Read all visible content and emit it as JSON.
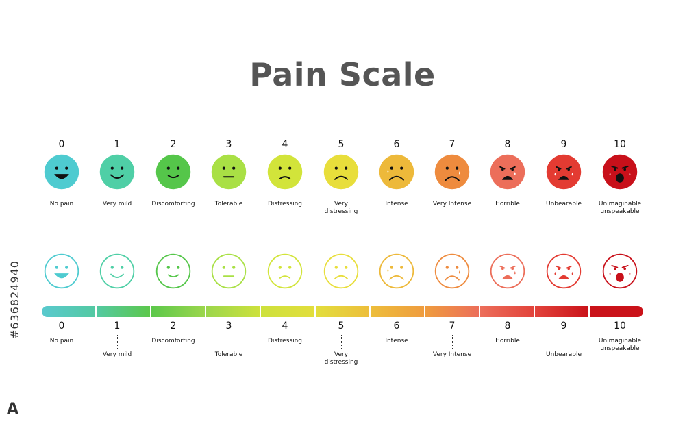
{
  "title": "Pain Scale",
  "side_text": {
    "logo": "A",
    "id": "#636824940"
  },
  "levels": [
    {
      "n": "0",
      "label": [
        "No pain"
      ],
      "color": "#4ECBD0",
      "face": "laugh"
    },
    {
      "n": "1",
      "label": [
        "Very mild"
      ],
      "color": "#4FCFA6",
      "face": "smile"
    },
    {
      "n": "2",
      "label": [
        "Discomforting"
      ],
      "color": "#55C64A",
      "face": "smile-small"
    },
    {
      "n": "3",
      "label": [
        "Tolerable"
      ],
      "color": "#A9E045",
      "face": "neutral"
    },
    {
      "n": "4",
      "label": [
        "Distressing"
      ],
      "color": "#D2E43A",
      "face": "frown"
    },
    {
      "n": "5",
      "label": [
        "Very",
        "distressing"
      ],
      "color": "#E8DE3B",
      "face": "frown-big"
    },
    {
      "n": "6",
      "label": [
        "Intense"
      ],
      "color": "#EDB93A",
      "face": "frown-tear"
    },
    {
      "n": "7",
      "label": [
        "Very Intense"
      ],
      "color": "#EE8B3E",
      "face": "frown-tears"
    },
    {
      "n": "8",
      "label": [
        "Horrible"
      ],
      "color": "#EC6E5A",
      "face": "open-tear"
    },
    {
      "n": "9",
      "label": [
        "Unbearable"
      ],
      "color": "#E33B32",
      "face": "open-tears"
    },
    {
      "n": "10",
      "label": [
        "Unimaginable",
        "unspeakable"
      ],
      "color": "#C8101A",
      "face": "scream"
    }
  ],
  "scale_bar_colors": [
    "#59C9CE",
    "#53C9A2",
    "#5CC84B",
    "#9BD64C",
    "#CDE13C",
    "#E2DE3C",
    "#EDBE3B",
    "#EF9C3E",
    "#EC6E5A",
    "#E2433B",
    "#CA1219"
  ]
}
